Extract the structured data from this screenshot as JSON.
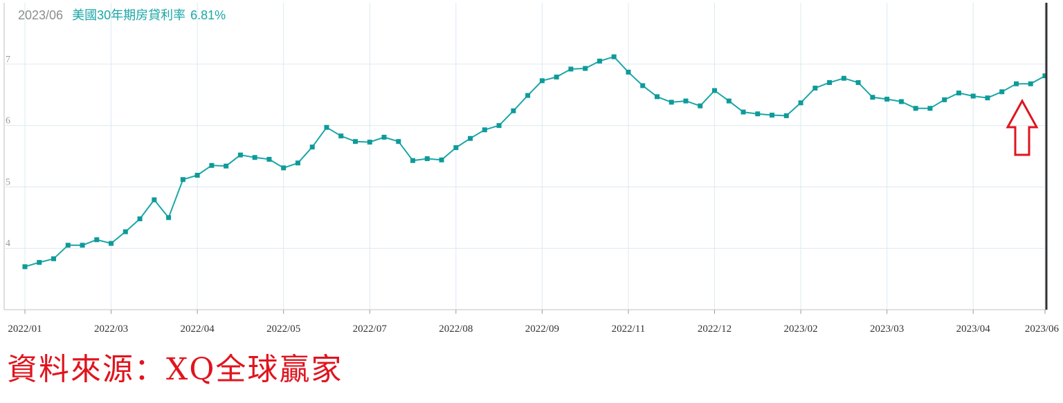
{
  "header": {
    "date": "2023/06",
    "series_name": "美國30年期房貸利率",
    "value": "6.81%"
  },
  "source_note": "資料來源：XQ全球贏家",
  "colors": {
    "line": "#1aa6a6",
    "marker": "#0f9a9a",
    "grid": "#dce9f0",
    "arrow": "#e0141e",
    "cursor": "#333333",
    "source_text": "#e0141e"
  },
  "chart_data": {
    "type": "line",
    "ylim": [
      3.0,
      8.0
    ],
    "yticks": [
      4,
      5,
      6,
      7
    ],
    "grid": true,
    "x_tick_labels": [
      "2022/01",
      "2022/03",
      "2022/04",
      "2022/05",
      "2022/07",
      "2022/08",
      "2022/09",
      "2022/11",
      "2022/12",
      "2023/02",
      "2023/03",
      "2023/04",
      "2023/06"
    ],
    "x_tick_index": [
      0,
      6,
      12,
      18,
      24,
      30,
      36,
      42,
      48,
      54,
      60,
      66,
      71
    ],
    "series": [
      {
        "name": "美國30年期房貸利率",
        "values": [
          3.7,
          3.77,
          3.83,
          4.05,
          4.05,
          4.14,
          4.08,
          4.27,
          4.48,
          4.79,
          4.5,
          5.12,
          5.19,
          5.35,
          5.34,
          5.52,
          5.48,
          5.45,
          5.31,
          5.39,
          5.65,
          5.97,
          5.83,
          5.74,
          5.73,
          5.81,
          5.74,
          5.43,
          5.46,
          5.44,
          5.64,
          5.79,
          5.93,
          6.0,
          6.24,
          6.49,
          6.73,
          6.79,
          6.92,
          6.93,
          7.05,
          7.12,
          6.87,
          6.65,
          6.47,
          6.38,
          6.4,
          6.32,
          6.57,
          6.4,
          6.22,
          6.19,
          6.17,
          6.16,
          6.37,
          6.61,
          6.7,
          6.77,
          6.7,
          6.46,
          6.43,
          6.39,
          6.28,
          6.28,
          6.42,
          6.53,
          6.48,
          6.45,
          6.55,
          6.68,
          6.68,
          6.81
        ]
      }
    ]
  }
}
